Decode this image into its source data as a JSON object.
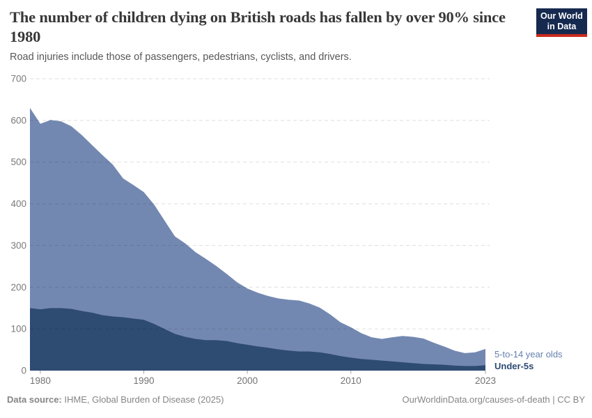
{
  "header": {
    "title": "The number of children dying on British roads has fallen by over 90% since 1980",
    "subtitle": "Road injuries include those of passengers, pedestrians, cyclists, and drivers."
  },
  "logo": {
    "line1": "Our World",
    "line2": "in Data",
    "bg_color": "#16294f",
    "accent_color": "#cc2a1d"
  },
  "chart_data": {
    "type": "area",
    "stacked": true,
    "title": "The number of children dying on British roads has fallen by over 90% since 1980",
    "xlabel": "",
    "ylabel": "",
    "ylim": [
      0,
      700
    ],
    "yticks": [
      0,
      100,
      200,
      300,
      400,
      500,
      600,
      700
    ],
    "xticks": [
      1980,
      1990,
      2000,
      2010,
      2023
    ],
    "grid": "horizontal-dashed",
    "legend_position": "right-end-labels",
    "x_years": [
      1979,
      1980,
      1981,
      1982,
      1983,
      1984,
      1985,
      1986,
      1987,
      1988,
      1989,
      1990,
      1991,
      1992,
      1993,
      1994,
      1995,
      1996,
      1997,
      1998,
      1999,
      2000,
      2001,
      2002,
      2003,
      2004,
      2005,
      2006,
      2007,
      2008,
      2009,
      2010,
      2011,
      2012,
      2013,
      2014,
      2015,
      2016,
      2017,
      2018,
      2019,
      2020,
      2021,
      2022,
      2023
    ],
    "series": [
      {
        "name": "Under-5s",
        "color": "#2e4b72",
        "label_color": "#2d4a73",
        "values": [
          150,
          147,
          150,
          150,
          148,
          143,
          139,
          133,
          130,
          128,
          125,
          122,
          112,
          100,
          88,
          81,
          76,
          73,
          73,
          71,
          66,
          62,
          58,
          55,
          51,
          48,
          46,
          46,
          44,
          40,
          35,
          31,
          28,
          26,
          24,
          22,
          20,
          18,
          16,
          15,
          14,
          12,
          11,
          11,
          13
        ]
      },
      {
        "name": "5-to-14 year olds",
        "color": "#7388b1",
        "label_color": "#6480ab",
        "values": [
          480,
          445,
          451,
          448,
          438,
          422,
          402,
          384,
          364,
          333,
          320,
          306,
          286,
          260,
          234,
          224,
          208,
          195,
          178,
          161,
          146,
          135,
          129,
          124,
          122,
          122,
          122,
          115,
          107,
          95,
          81,
          73,
          62,
          54,
          52,
          58,
          63,
          63,
          61,
          52,
          44,
          36,
          31,
          33,
          39
        ]
      }
    ]
  },
  "footer": {
    "source_label": "Data source:",
    "source_text": " IHME, Global Burden of Disease (2025)",
    "link_text": "OurWorldinData.org/causes-of-death | CC BY"
  }
}
